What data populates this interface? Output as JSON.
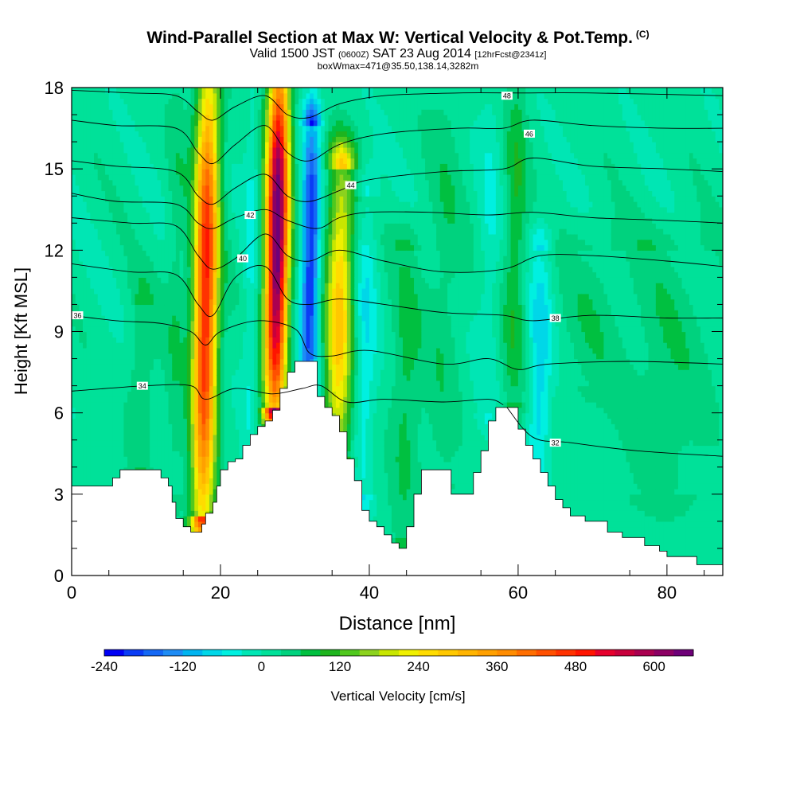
{
  "title": {
    "main": "Wind-Parallel Section at Max W: Vertical Velocity & Pot.Temp.",
    "copyright": "(C)",
    "valid_prefix": "Valid 1500 JST",
    "valid_utc": "(0600Z)",
    "valid_date": "SAT 23 Aug 2014",
    "forecast": "[12hrFcst@2341z]",
    "subtitle": "boxWmax=471@35.50,138.14,3282m"
  },
  "chart_data": {
    "type": "heatmap",
    "xlabel": "Distance [nm]",
    "ylabel": "Height [Kft MSL]",
    "xlim": [
      0,
      87.5
    ],
    "ylim": [
      0,
      18
    ],
    "x_ticks": [
      "0",
      "20",
      "40",
      "60",
      "80"
    ],
    "y_ticks": [
      "0",
      "3",
      "6",
      "9",
      "12",
      "15",
      "18"
    ],
    "colorbar": {
      "label": "Vertical Velocity [cm/s]",
      "tick_labels": [
        "-240",
        "-120",
        "0",
        "120",
        "240",
        "360",
        "480",
        "600"
      ],
      "tick_values": [
        -240,
        -120,
        0,
        120,
        240,
        360,
        480,
        600
      ],
      "levels": [
        -240,
        -210,
        -180,
        -150,
        -120,
        -90,
        -60,
        -30,
        0,
        30,
        60,
        90,
        120,
        150,
        180,
        210,
        240,
        270,
        300,
        330,
        360,
        390,
        420,
        450,
        480,
        510,
        540,
        570,
        600,
        630,
        660
      ],
      "colors": [
        "#0000f5",
        "#0a3cf5",
        "#1468f5",
        "#1e8cf5",
        "#00b4f0",
        "#00d7e8",
        "#00f0e0",
        "#00e6b4",
        "#00e199",
        "#00d27e",
        "#00c040",
        "#1eb41e",
        "#50c81e",
        "#8cd21e",
        "#c8e600",
        "#f0f000",
        "#ffdc00",
        "#ffc800",
        "#ffb400",
        "#ffa000",
        "#ff8c00",
        "#ff6e00",
        "#ff5000",
        "#ff3200",
        "#ff1400",
        "#e6002d",
        "#c8003c",
        "#aa0050",
        "#8c0064",
        "#6e0078"
      ]
    },
    "terrain_kft": [
      [
        0,
        3.3
      ],
      [
        4,
        3.3
      ],
      [
        5.5,
        3.6
      ],
      [
        6.5,
        3.9
      ],
      [
        11,
        3.9
      ],
      [
        12,
        3.6
      ],
      [
        13,
        3.3
      ],
      [
        13.5,
        2.7
      ],
      [
        14,
        2.1
      ],
      [
        15,
        1.8
      ],
      [
        16,
        1.6
      ],
      [
        17,
        1.6
      ],
      [
        17.5,
        1.9
      ],
      [
        18,
        2.3
      ],
      [
        19,
        2.7
      ],
      [
        19.5,
        3.3
      ],
      [
        20,
        3.9
      ],
      [
        21,
        4.2
      ],
      [
        22,
        4.3
      ],
      [
        23,
        4.8
      ],
      [
        24,
        5.2
      ],
      [
        25,
        5.5
      ],
      [
        26,
        5.7
      ],
      [
        27,
        6.1
      ],
      [
        28,
        6.9
      ],
      [
        29,
        7.5
      ],
      [
        30,
        7.9
      ],
      [
        32,
        7.9
      ],
      [
        33,
        6.6
      ],
      [
        34,
        6.2
      ],
      [
        35,
        5.9
      ],
      [
        36,
        5.3
      ],
      [
        37,
        4.3
      ],
      [
        38,
        3.5
      ],
      [
        39,
        2.4
      ],
      [
        40,
        2.0
      ],
      [
        41,
        1.8
      ],
      [
        42,
        1.5
      ],
      [
        43,
        1.2
      ],
      [
        44,
        1.0
      ],
      [
        45,
        1.8
      ],
      [
        46,
        3.0
      ],
      [
        47,
        3.9
      ],
      [
        50,
        3.9
      ],
      [
        51,
        3.0
      ],
      [
        53,
        3.0
      ],
      [
        54,
        3.8
      ],
      [
        55,
        4.6
      ],
      [
        56,
        5.7
      ],
      [
        57,
        6.2
      ],
      [
        59,
        6.2
      ],
      [
        60,
        5.4
      ],
      [
        61,
        4.8
      ],
      [
        62,
        4.3
      ],
      [
        63,
        3.8
      ],
      [
        64,
        3.3
      ],
      [
        65,
        2.8
      ],
      [
        66,
        2.5
      ],
      [
        67,
        2.2
      ],
      [
        69,
        2.0
      ],
      [
        72,
        1.6
      ],
      [
        74,
        1.4
      ],
      [
        77,
        1.1
      ],
      [
        79,
        0.9
      ],
      [
        80,
        0.7
      ],
      [
        83,
        0.7
      ],
      [
        84,
        0.4
      ],
      [
        87.5,
        0.4
      ]
    ],
    "w_features": [
      {
        "x": 18.0,
        "zb": 2.2,
        "zt": 18.0,
        "peak": 480,
        "sx": 1.6
      },
      {
        "x": 27.5,
        "zb": 6.3,
        "zt": 18.5,
        "peak": 660,
        "sx": 1.5
      },
      {
        "x": 36.0,
        "zb": 4.5,
        "zt": 15.0,
        "peak": 270,
        "sx": 1.8
      },
      {
        "x": 32.0,
        "zb": 6.5,
        "zt": 16.5,
        "peak": -230,
        "sx": 1.2
      },
      {
        "x": 24.0,
        "zb": 4.0,
        "zt": 18.0,
        "peak": -50,
        "sx": 1.0
      },
      {
        "x": 14.0,
        "zb": 3.0,
        "zt": 18.0,
        "peak": 40,
        "sx": 1.4
      },
      {
        "x": 39.5,
        "zb": 3.0,
        "zt": 14.0,
        "peak": -70,
        "sx": 1.5
      },
      {
        "x": 45.0,
        "zb": 1.5,
        "zt": 12.0,
        "peak": 60,
        "sx": 2.0
      },
      {
        "x": 50.0,
        "zb": 3.5,
        "zt": 18.0,
        "peak": 40,
        "sx": 2.5
      },
      {
        "x": 56.0,
        "zb": 6.0,
        "zt": 18.0,
        "peak": -40,
        "sx": 1.5
      },
      {
        "x": 59.5,
        "zb": 6.5,
        "zt": 18.0,
        "peak": 80,
        "sx": 1.5
      },
      {
        "x": 63.0,
        "zb": 2.5,
        "zt": 12.0,
        "peak": -90,
        "sx": 1.5
      },
      {
        "x": 9.5,
        "zb": 4.0,
        "zt": 10.0,
        "peak": 50,
        "sx": 1.8
      },
      {
        "x": 80.0,
        "zb": 3.0,
        "zt": 12.0,
        "peak": 40,
        "sx": 6.0
      },
      {
        "x": 70.0,
        "zb": 7.0,
        "zt": 12.0,
        "peak": 35,
        "sx": 4.0
      }
    ],
    "theta_contours": [
      {
        "label": "32",
        "label_pos": [
          65,
          4.9
        ],
        "points": [
          [
            58.5,
            6.2
          ],
          [
            62,
            5.1
          ],
          [
            67,
            4.9
          ],
          [
            76,
            4.6
          ],
          [
            87.5,
            4.4
          ]
        ]
      },
      {
        "label": "34",
        "label_pos": [
          9.5,
          7.0
        ],
        "points": [
          [
            0,
            6.8
          ],
          [
            10,
            7.0
          ],
          [
            16,
            7.0
          ],
          [
            18,
            6.5
          ],
          [
            22,
            6.9
          ],
          [
            27,
            6.7
          ],
          [
            31,
            6.9
          ],
          [
            33.5,
            7.0
          ],
          [
            37,
            6.4
          ],
          [
            42,
            6.5
          ],
          [
            50,
            6.4
          ],
          [
            56,
            6.5
          ],
          [
            58,
            6.3
          ]
        ]
      },
      {
        "label": "36",
        "label_pos": [
          0.8,
          9.6
        ],
        "points": [
          [
            0,
            9.6
          ],
          [
            6,
            9.4
          ],
          [
            12,
            9.3
          ],
          [
            16,
            9.0
          ],
          [
            18,
            8.5
          ],
          [
            20,
            9.0
          ],
          [
            25,
            9.4
          ],
          [
            30,
            9.1
          ],
          [
            32,
            8.2
          ],
          [
            35,
            8.1
          ],
          [
            40,
            8.3
          ],
          [
            50,
            7.8
          ],
          [
            56,
            8.0
          ],
          [
            60,
            7.6
          ],
          [
            64,
            7.8
          ],
          [
            75,
            7.9
          ],
          [
            87.5,
            7.8
          ]
        ]
      },
      {
        "label": "38",
        "label_pos": [
          65,
          9.5
        ],
        "points": [
          [
            0,
            11.5
          ],
          [
            8,
            11.2
          ],
          [
            14,
            11.1
          ],
          [
            17,
            10.0
          ],
          [
            19,
            9.6
          ],
          [
            22,
            11.0
          ],
          [
            26,
            11.4
          ],
          [
            29,
            10.2
          ],
          [
            32,
            10.0
          ],
          [
            36,
            10.2
          ],
          [
            42,
            10.0
          ],
          [
            50,
            9.7
          ],
          [
            58,
            9.6
          ],
          [
            62,
            9.4
          ],
          [
            70,
            9.6
          ],
          [
            80,
            9.5
          ],
          [
            87.5,
            9.5
          ]
        ]
      },
      {
        "label": "40",
        "label_pos": [
          23,
          11.7
        ],
        "points": [
          [
            0,
            13.2
          ],
          [
            8,
            13.0
          ],
          [
            14,
            12.9
          ],
          [
            17,
            11.8
          ],
          [
            19,
            11.3
          ],
          [
            22,
            11.7
          ],
          [
            26,
            12.6
          ],
          [
            29,
            11.8
          ],
          [
            32,
            11.6
          ],
          [
            36,
            12.0
          ],
          [
            42,
            11.6
          ],
          [
            50,
            11.2
          ],
          [
            58,
            11.3
          ],
          [
            63,
            11.8
          ],
          [
            70,
            11.8
          ],
          [
            80,
            11.6
          ],
          [
            87.5,
            11.4
          ]
        ]
      },
      {
        "label": "42",
        "label_pos": [
          24,
          13.3
        ],
        "points": [
          [
            0,
            14.1
          ],
          [
            6,
            13.8
          ],
          [
            14,
            13.7
          ],
          [
            17,
            13.0
          ],
          [
            19,
            12.8
          ],
          [
            22,
            13.2
          ],
          [
            26,
            13.5
          ],
          [
            29,
            13.1
          ],
          [
            33,
            12.8
          ],
          [
            36,
            13.2
          ],
          [
            40,
            13.4
          ],
          [
            48,
            13.4
          ],
          [
            56,
            13.3
          ],
          [
            62,
            13.4
          ],
          [
            70,
            13.2
          ],
          [
            80,
            13.1
          ],
          [
            87.5,
            13.0
          ]
        ]
      },
      {
        "label": "44",
        "label_pos": [
          37.5,
          14.4
        ],
        "points": [
          [
            0,
            15.3
          ],
          [
            6,
            15.1
          ],
          [
            14,
            14.9
          ],
          [
            17,
            14.0
          ],
          [
            19,
            13.7
          ],
          [
            22,
            14.3
          ],
          [
            26,
            14.8
          ],
          [
            29,
            14.0
          ],
          [
            32,
            13.8
          ],
          [
            36,
            14.2
          ],
          [
            40,
            14.6
          ],
          [
            50,
            14.9
          ],
          [
            58,
            15.0
          ],
          [
            62,
            15.4
          ],
          [
            70,
            15.1
          ],
          [
            80,
            15.0
          ],
          [
            87.5,
            14.9
          ]
        ]
      },
      {
        "label": "46",
        "label_pos": [
          61.5,
          16.3
        ],
        "points": [
          [
            0,
            16.8
          ],
          [
            6,
            16.6
          ],
          [
            14,
            16.5
          ],
          [
            17,
            15.6
          ],
          [
            19,
            15.2
          ],
          [
            22,
            15.9
          ],
          [
            26,
            16.6
          ],
          [
            29,
            15.6
          ],
          [
            32,
            15.3
          ],
          [
            36,
            15.9
          ],
          [
            42,
            16.3
          ],
          [
            52,
            16.5
          ],
          [
            58,
            16.5
          ],
          [
            62,
            16.8
          ],
          [
            70,
            16.6
          ],
          [
            80,
            16.5
          ],
          [
            87.5,
            16.5
          ]
        ]
      },
      {
        "label": "48",
        "label_pos": [
          58.5,
          17.7
        ],
        "points": [
          [
            0,
            17.9
          ],
          [
            8,
            17.8
          ],
          [
            14,
            17.7
          ],
          [
            17,
            17.1
          ],
          [
            19,
            16.8
          ],
          [
            22,
            17.3
          ],
          [
            26,
            17.7
          ],
          [
            29,
            17.0
          ],
          [
            32,
            16.9
          ],
          [
            36,
            17.4
          ],
          [
            42,
            17.7
          ],
          [
            52,
            17.8
          ],
          [
            60,
            17.8
          ],
          [
            70,
            17.8
          ],
          [
            87.5,
            17.7
          ]
        ]
      }
    ]
  }
}
